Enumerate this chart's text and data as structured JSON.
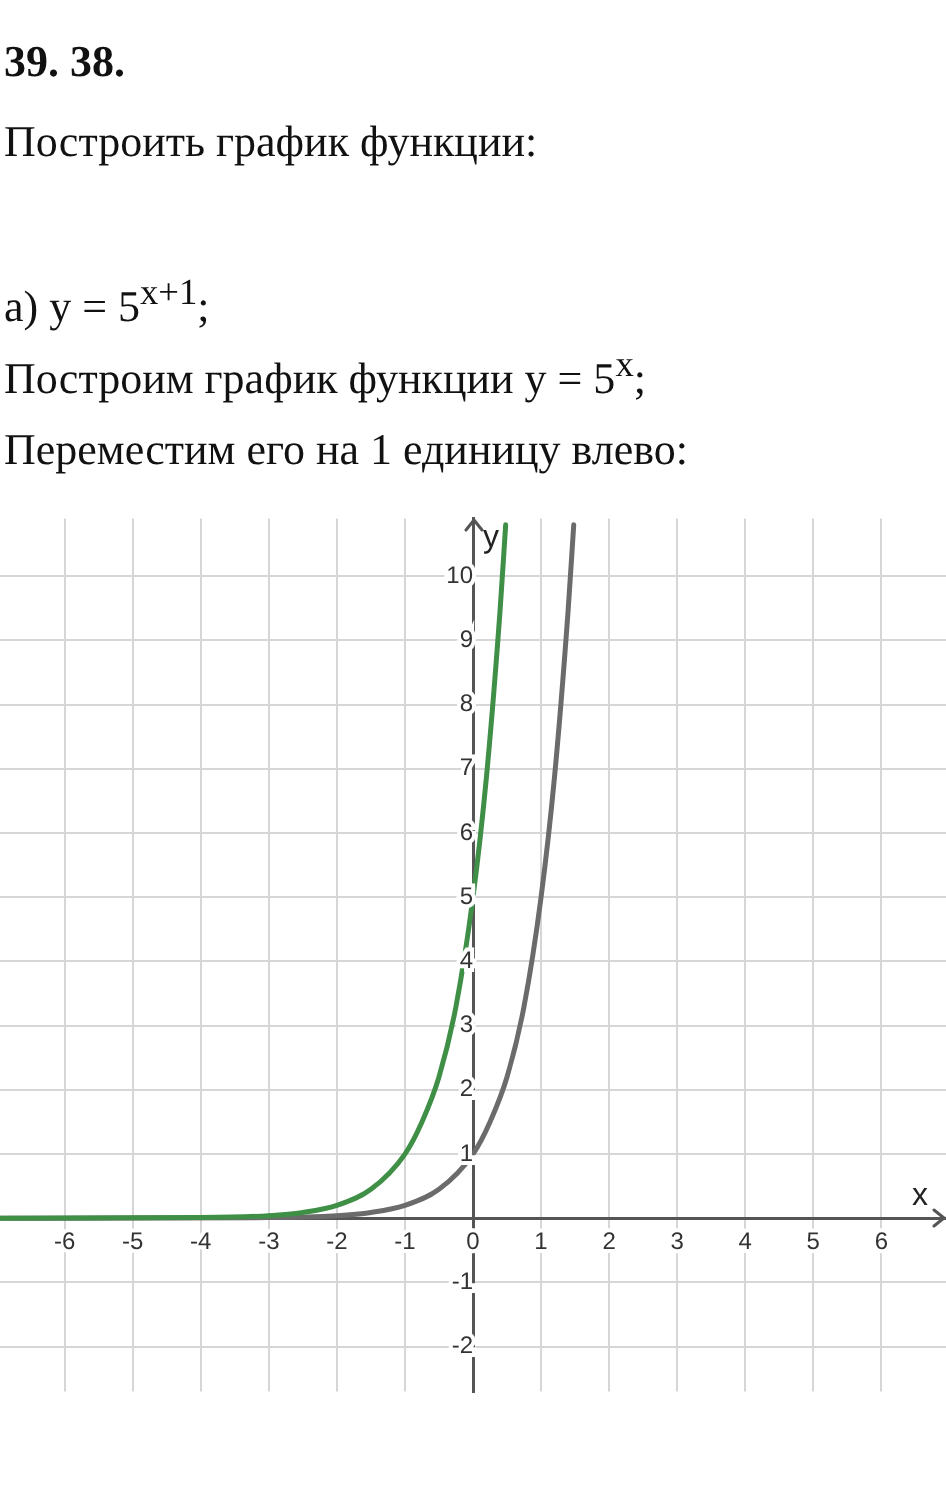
{
  "chart_data": {
    "type": "line",
    "title": "39. 38.",
    "subtitle": "Построить график функции:",
    "annotations": [
      "а) y = 5$^{x+1}$;",
      "Построим график функции y = 5$^{x}$;",
      "Переместим его на 1 единицу влево:"
    ],
    "xlabel": "x",
    "ylabel": "y",
    "series": [
      {
        "color": "#3f8f47",
        "x": [
          -6.95,
          -4,
          -3,
          -2.5,
          -2,
          -1.5,
          -1,
          -0.75,
          -0.5,
          -0.25,
          0,
          0.2,
          0.4,
          0.48
        ],
        "values": [
          0,
          0.01,
          0.04,
          0.09,
          0.2,
          0.45,
          1,
          1.5,
          2.2,
          3.3,
          5,
          6.9,
          9.5,
          10.8
        ]
      },
      {
        "color": "#6b6b6b",
        "x": [
          -6.95,
          -3,
          -2,
          -1.5,
          -1,
          -0.5,
          0,
          0.25,
          0.5,
          0.75,
          1,
          1.2,
          1.4,
          1.48
        ],
        "values": [
          0,
          0.01,
          0.04,
          0.09,
          0.2,
          0.45,
          1,
          1.5,
          2.2,
          3.3,
          5,
          6.9,
          9.5,
          10.8
        ]
      }
    ],
    "xlim": [
      -6.95,
      6.95
    ],
    "ylim": [
      -2.7,
      10.9
    ],
    "xticks": [
      -6,
      -5,
      -4,
      -3,
      -2,
      -1,
      0,
      1,
      2,
      3,
      4,
      5,
      6
    ],
    "yticks": [
      -2,
      -1,
      1,
      2,
      3,
      4,
      5,
      6,
      7,
      8,
      9,
      10
    ],
    "grid": true,
    "marker": "none"
  }
}
